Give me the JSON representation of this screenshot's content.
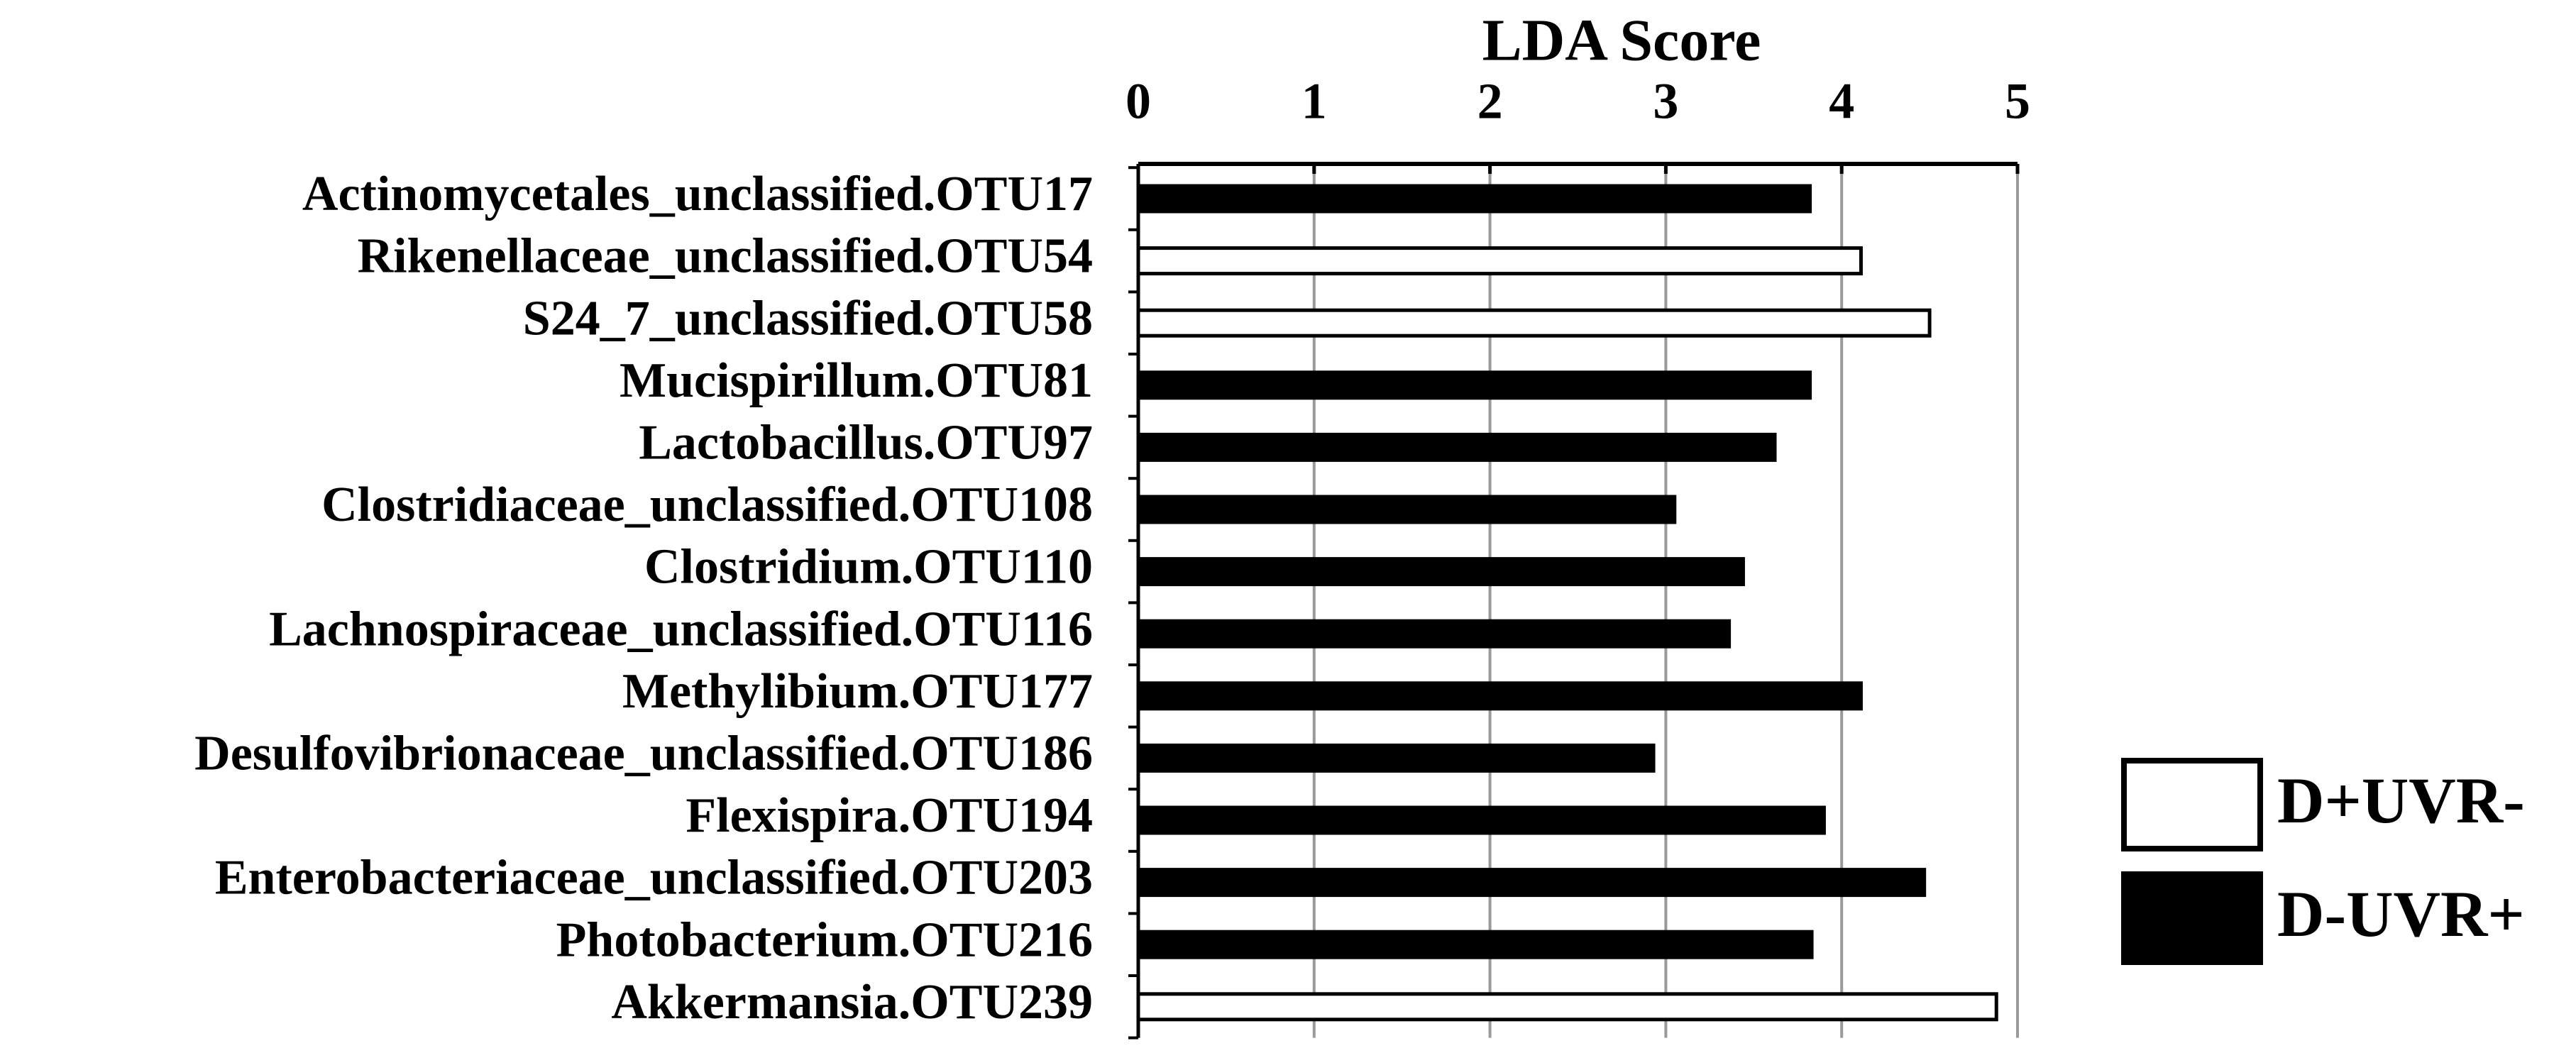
{
  "chart_data": {
    "type": "barh",
    "title": "LDA Score",
    "categories": [
      "Actinomycetales_unclassified.OTU17",
      "Rikenellaceae_unclassified.OTU54",
      "S24_7_unclassified.OTU58",
      "Mucispirillum.OTU81",
      "Lactobacillus.OTU97",
      "Clostridiaceae_unclassified.OTU108",
      "Clostridium.OTU110",
      "Lachnospiraceae_unclassified.OTU116",
      "Methylibium.OTU177",
      "Desulfovibrionaceae_unclassified.OTU186",
      "Flexispira.OTU194",
      "Enterobacteriaceae_unclassified.OTU203",
      "Photobacterium.OTU216",
      "Akkermansia.OTU239"
    ],
    "series": [
      {
        "name": "D+UVR-",
        "color": "#ffffff",
        "values": [
          null,
          4.11,
          4.5,
          null,
          null,
          null,
          null,
          null,
          null,
          null,
          null,
          null,
          null,
          4.88
        ]
      },
      {
        "name": "D-UVR+",
        "color": "#000000",
        "values": [
          3.82,
          null,
          null,
          3.82,
          3.62,
          3.05,
          3.44,
          3.36,
          4.11,
          2.93,
          3.9,
          4.47,
          3.83,
          null
        ]
      }
    ],
    "xlim": [
      0,
      5
    ],
    "xticks": [
      0,
      1,
      2,
      3,
      4,
      5
    ],
    "grid": true,
    "legend": "right"
  }
}
